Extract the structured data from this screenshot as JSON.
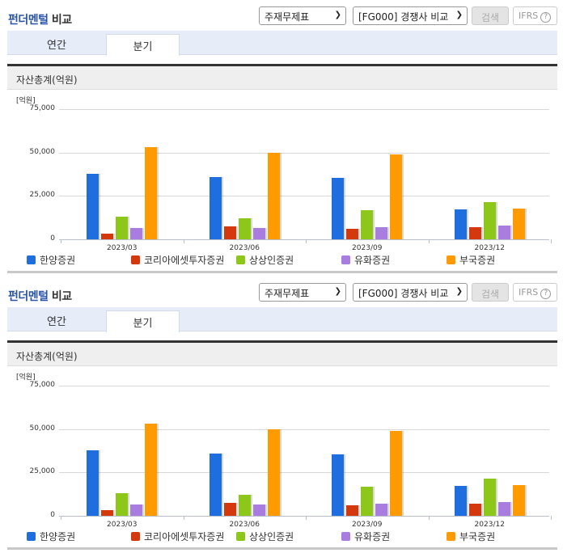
{
  "sections": [
    {
      "title_highlight": "펀더멘털",
      "title_rest": " 비교",
      "select_statement": "주재무제표",
      "select_group": "[FG000] 경쟁사 비교",
      "search_label": "검색",
      "ifrs_label": "IFRS",
      "help_glyph": "?",
      "tabs": [
        {
          "label": "연간",
          "active": false
        },
        {
          "label": "분기",
          "active": true
        }
      ],
      "chart_title": "자산총계(억원)",
      "unit_label": "[억원]"
    },
    {
      "title_highlight": "펀더멘털",
      "title_rest": " 비교",
      "select_statement": "주재무제표",
      "select_group": "[FG000] 경쟁사 비교",
      "search_label": "검색",
      "ifrs_label": "IFRS",
      "help_glyph": "?",
      "tabs": [
        {
          "label": "연간",
          "active": false
        },
        {
          "label": "분기",
          "active": true
        }
      ],
      "chart_title": "자산총계(억원)",
      "unit_label": "[억원]"
    }
  ],
  "icons": {
    "dropdown": "chevron-down-icon",
    "help": "question-circle-icon"
  },
  "y_ticks": [
    "75,000",
    "50,000",
    "25,000",
    "0"
  ],
  "chart_data": {
    "type": "bar",
    "title": "자산총계(억원)",
    "xlabel": "",
    "ylabel": "[억원]",
    "ylim": [
      0,
      75000
    ],
    "grid": true,
    "legend_position": "bottom",
    "categories": [
      "2023/03",
      "2023/06",
      "2023/09",
      "2023/12"
    ],
    "series": [
      {
        "name": "한양증권",
        "color": "#1f6ee0",
        "values": [
          37800,
          36000,
          35500,
          17300
        ]
      },
      {
        "name": "코리아에셋투자증권",
        "color": "#d4380d",
        "values": [
          3300,
          7500,
          6000,
          7000
        ]
      },
      {
        "name": "상상인증권",
        "color": "#8cc71a",
        "values": [
          13000,
          12200,
          16800,
          21500
        ]
      },
      {
        "name": "유화증권",
        "color": "#a97ce0",
        "values": [
          6300,
          6300,
          7000,
          8000
        ]
      },
      {
        "name": "부국증권",
        "color": "#ff9a00",
        "values": [
          53200,
          50000,
          49000,
          17800
        ]
      }
    ]
  }
}
